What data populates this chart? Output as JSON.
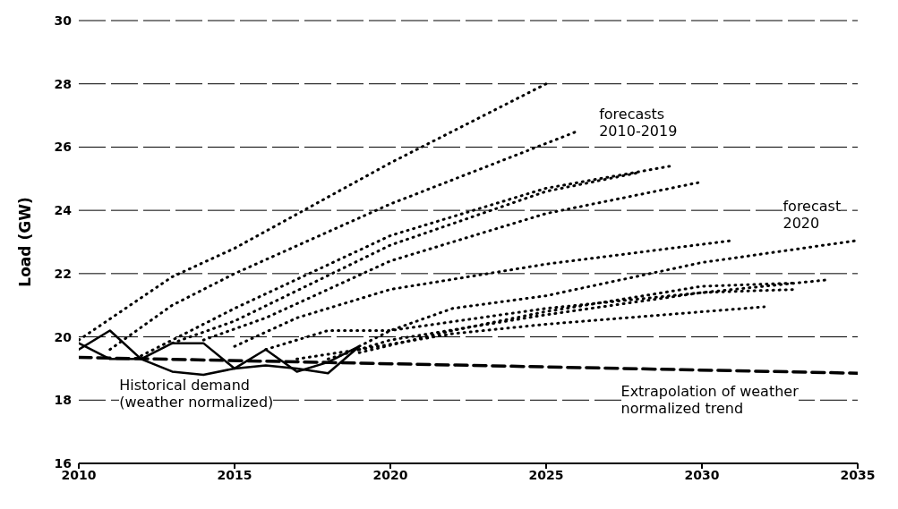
{
  "chart_data": {
    "type": "line",
    "ylabel": "Load (GW)",
    "xlim": [
      2010,
      2035
    ],
    "xticks": [
      2010,
      2015,
      2020,
      2025,
      2030,
      2035
    ],
    "ylim": [
      16,
      30
    ],
    "yticks": [
      16,
      18,
      20,
      22,
      24,
      26,
      28,
      30
    ],
    "grid": "y",
    "marker": "none",
    "series": [
      {
        "color": "#000000",
        "line_style": "solid",
        "x": [
          2010,
          2011,
          2012,
          2013,
          2014,
          2015,
          2016,
          2017,
          2018,
          2019
        ],
        "values": [
          19.6,
          20.2,
          19.3,
          19.8,
          19.8,
          19.0,
          19.6,
          18.9,
          19.2,
          19.7
        ]
      },
      {
        "color": "#000000",
        "line_style": "solid",
        "x": [
          2010,
          2011,
          2012,
          2013,
          2014,
          2015,
          2016,
          2017,
          2018,
          2019
        ],
        "values": [
          19.8,
          19.3,
          19.3,
          18.9,
          18.8,
          19.0,
          19.1,
          19.0,
          18.85,
          19.7
        ]
      },
      {
        "color": "#000000",
        "line_style": "dashed",
        "x": [
          2010,
          2035
        ],
        "values": [
          19.35,
          18.85
        ]
      },
      {
        "color": "#000000",
        "line_style": "dotted",
        "x": [
          2010,
          2013,
          2015,
          2020,
          2025
        ],
        "values": [
          19.9,
          21.9,
          22.8,
          25.5,
          28.0
        ]
      },
      {
        "color": "#000000",
        "line_style": "dotted",
        "x": [
          2011,
          2013,
          2015,
          2020,
          2026
        ],
        "values": [
          19.6,
          21.0,
          22.0,
          24.2,
          26.5
        ]
      },
      {
        "color": "#000000",
        "line_style": "dotted",
        "x": [
          2012,
          2015,
          2020,
          2025,
          2029
        ],
        "values": [
          19.4,
          20.9,
          23.2,
          24.7,
          25.4
        ]
      },
      {
        "color": "#000000",
        "line_style": "dotted",
        "x": [
          2013,
          2015,
          2020,
          2025,
          2028
        ],
        "values": [
          19.8,
          20.5,
          22.9,
          24.6,
          25.2
        ]
      },
      {
        "color": "#000000",
        "line_style": "dotted",
        "x": [
          2014,
          2016,
          2020,
          2025,
          2030
        ],
        "values": [
          19.9,
          20.6,
          22.4,
          23.9,
          24.9
        ]
      },
      {
        "color": "#000000",
        "line_style": "dotted",
        "x": [
          2015,
          2017,
          2020,
          2025,
          2031
        ],
        "values": [
          19.7,
          20.6,
          21.5,
          22.3,
          23.05
        ]
      },
      {
        "color": "#000000",
        "line_style": "dotted",
        "x": [
          2016,
          2018,
          2020,
          2025,
          2030,
          2034
        ],
        "values": [
          19.6,
          20.2,
          20.2,
          20.9,
          21.4,
          21.8
        ]
      },
      {
        "color": "#000000",
        "line_style": "dotted",
        "x": [
          2017,
          2019,
          2022,
          2025,
          2032
        ],
        "values": [
          19.3,
          19.6,
          20.1,
          20.4,
          20.95
        ]
      },
      {
        "color": "#000000",
        "line_style": "dotted",
        "x": [
          2018,
          2020,
          2025,
          2030,
          2033
        ],
        "values": [
          19.3,
          19.9,
          20.7,
          21.4,
          21.5
        ]
      },
      {
        "color": "#000000",
        "line_style": "dotted",
        "x": [
          2019,
          2022,
          2025,
          2030,
          2033
        ],
        "values": [
          19.5,
          20.2,
          20.8,
          21.6,
          21.7
        ]
      },
      {
        "color": "#000000",
        "line_style": "dotted",
        "x": [
          2019,
          2020,
          2022,
          2025,
          2030,
          2035
        ],
        "values": [
          19.7,
          20.2,
          20.9,
          21.3,
          22.35,
          23.05
        ]
      }
    ],
    "annotations": [
      "forecasts\n2010-2019",
      "forecast\n2020",
      "Historical demand\n(weather normalized)",
      "Extrapolation of weather\nnormalized trend"
    ]
  }
}
